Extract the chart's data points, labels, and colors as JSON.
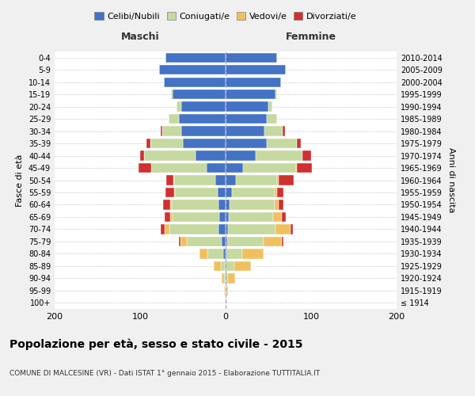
{
  "age_groups": [
    "100+",
    "95-99",
    "90-94",
    "85-89",
    "80-84",
    "75-79",
    "70-74",
    "65-69",
    "60-64",
    "55-59",
    "50-54",
    "45-49",
    "40-44",
    "35-39",
    "30-34",
    "25-29",
    "20-24",
    "15-19",
    "10-14",
    "5-9",
    "0-4"
  ],
  "birth_years": [
    "≤ 1914",
    "1915-1919",
    "1920-1924",
    "1925-1929",
    "1930-1934",
    "1935-1939",
    "1940-1944",
    "1945-1949",
    "1950-1954",
    "1955-1959",
    "1960-1964",
    "1965-1969",
    "1970-1974",
    "1975-1979",
    "1980-1984",
    "1985-1989",
    "1990-1994",
    "1995-1999",
    "2000-2004",
    "2005-2009",
    "2010-2014"
  ],
  "maschi_celibi": [
    0,
    0,
    0,
    1,
    3,
    5,
    8,
    7,
    8,
    9,
    12,
    22,
    35,
    50,
    52,
    55,
    52,
    62,
    72,
    78,
    70
  ],
  "maschi_coniugati": [
    0,
    1,
    2,
    5,
    18,
    40,
    58,
    55,
    55,
    50,
    48,
    65,
    60,
    38,
    22,
    12,
    5,
    2,
    0,
    0,
    0
  ],
  "maschi_vedovi": [
    0,
    1,
    3,
    8,
    10,
    8,
    5,
    3,
    2,
    1,
    1,
    0,
    0,
    0,
    0,
    0,
    0,
    0,
    0,
    0,
    0
  ],
  "maschi_divorziati": [
    0,
    0,
    0,
    0,
    0,
    2,
    5,
    6,
    8,
    10,
    8,
    15,
    5,
    5,
    2,
    0,
    0,
    0,
    0,
    0,
    0
  ],
  "femmine_celibi": [
    0,
    0,
    0,
    0,
    1,
    2,
    3,
    4,
    5,
    7,
    12,
    20,
    35,
    48,
    45,
    48,
    50,
    58,
    65,
    70,
    60
  ],
  "femmine_coniugati": [
    0,
    1,
    3,
    10,
    18,
    42,
    55,
    52,
    52,
    50,
    48,
    62,
    55,
    35,
    22,
    12,
    5,
    2,
    0,
    0,
    0
  ],
  "femmine_vedovi": [
    1,
    2,
    8,
    20,
    25,
    22,
    18,
    10,
    5,
    3,
    2,
    1,
    0,
    0,
    0,
    0,
    0,
    0,
    0,
    0,
    0
  ],
  "femmine_divorziati": [
    0,
    0,
    0,
    0,
    0,
    2,
    3,
    4,
    6,
    8,
    18,
    18,
    10,
    5,
    2,
    0,
    0,
    0,
    0,
    0,
    0
  ],
  "color_celibi": "#4472c4",
  "color_coniugati": "#c5d9a0",
  "color_vedovi": "#f0c060",
  "color_divorziati": "#d03030",
  "title": "Popolazione per età, sesso e stato civile - 2015",
  "subtitle": "COMUNE DI MALCESINE (VR) - Dati ISTAT 1° gennaio 2015 - Elaborazione TUTTITALIA.IT",
  "xlabel_left": "Maschi",
  "xlabel_right": "Femmine",
  "ylabel_left": "Fasce di età",
  "ylabel_right": "Anni di nascita",
  "xlim": 200,
  "bg_color": "#f0f0f0",
  "plot_bg": "#ffffff"
}
